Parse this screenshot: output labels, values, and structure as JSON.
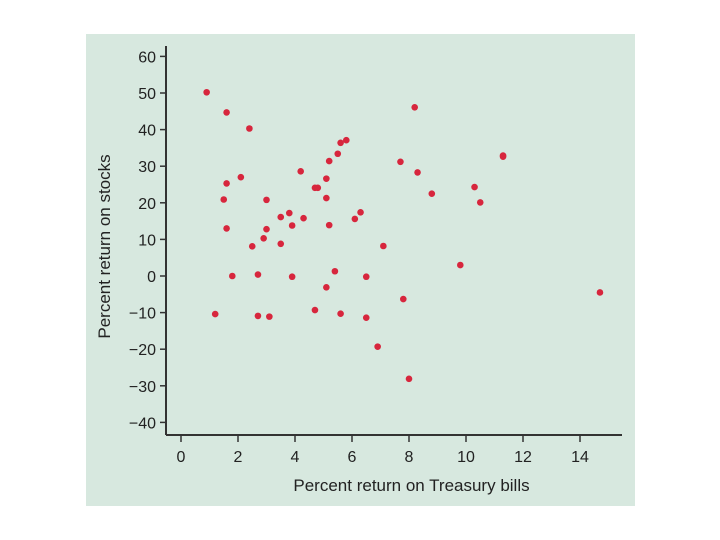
{
  "colors": {
    "panel": "#d7e8df",
    "point": "#d7263d",
    "axis": "#333333"
  },
  "chart_data": {
    "type": "scatter",
    "title": "",
    "xlabel": "Percent return on Treasury bills",
    "ylabel": "Percent return on stocks",
    "xlim": [
      0,
      15.5
    ],
    "ylim": [
      -40,
      60
    ],
    "xticks": [
      0,
      2,
      4,
      6,
      8,
      10,
      12,
      14
    ],
    "yticks": [
      60,
      50,
      40,
      30,
      20,
      10,
      0,
      -10,
      -20,
      -30,
      -40
    ],
    "xtick_labels": [
      "0",
      "2",
      "4",
      "6",
      "8",
      "10",
      "12",
      "14"
    ],
    "ytick_labels": [
      "60",
      "50",
      "40",
      "30",
      "20",
      "10",
      "0",
      "−10",
      "−20",
      "−30",
      "−40"
    ],
    "grid": false,
    "points": [
      {
        "x": 0.9,
        "y": 50.2
      },
      {
        "x": 1.6,
        "y": 44.7
      },
      {
        "x": 2.4,
        "y": 40.3
      },
      {
        "x": 1.6,
        "y": 25.3
      },
      {
        "x": 1.5,
        "y": 20.9
      },
      {
        "x": 1.6,
        "y": 13.0
      },
      {
        "x": 1.8,
        "y": 0.0
      },
      {
        "x": 1.2,
        "y": -10.4
      },
      {
        "x": 2.1,
        "y": 27.0
      },
      {
        "x": 2.5,
        "y": 8.1
      },
      {
        "x": 2.7,
        "y": 0.4
      },
      {
        "x": 2.7,
        "y": -10.9
      },
      {
        "x": 3.0,
        "y": 20.8
      },
      {
        "x": 3.0,
        "y": 12.8
      },
      {
        "x": 2.9,
        "y": 10.3
      },
      {
        "x": 3.1,
        "y": -11.1
      },
      {
        "x": 3.5,
        "y": 16.1
      },
      {
        "x": 3.8,
        "y": 17.2
      },
      {
        "x": 3.5,
        "y": 8.8
      },
      {
        "x": 3.9,
        "y": 13.8
      },
      {
        "x": 3.9,
        "y": -0.2
      },
      {
        "x": 4.2,
        "y": 28.6
      },
      {
        "x": 4.3,
        "y": 15.8
      },
      {
        "x": 4.7,
        "y": 24.1
      },
      {
        "x": 4.8,
        "y": 24.1
      },
      {
        "x": 4.7,
        "y": -9.3
      },
      {
        "x": 5.1,
        "y": 26.6
      },
      {
        "x": 5.2,
        "y": 31.4
      },
      {
        "x": 5.1,
        "y": 21.3
      },
      {
        "x": 5.2,
        "y": 13.9
      },
      {
        "x": 5.5,
        "y": 33.4
      },
      {
        "x": 5.6,
        "y": 36.4
      },
      {
        "x": 5.8,
        "y": 37.1
      },
      {
        "x": 5.4,
        "y": 1.3
      },
      {
        "x": 5.1,
        "y": -3.1
      },
      {
        "x": 5.6,
        "y": -10.3
      },
      {
        "x": 6.1,
        "y": 15.6
      },
      {
        "x": 6.3,
        "y": 17.4
      },
      {
        "x": 6.5,
        "y": -0.2
      },
      {
        "x": 6.5,
        "y": -11.4
      },
      {
        "x": 6.9,
        "y": -19.3
      },
      {
        "x": 7.1,
        "y": 8.2
      },
      {
        "x": 7.7,
        "y": 31.2
      },
      {
        "x": 7.8,
        "y": -6.3
      },
      {
        "x": 8.0,
        "y": -28.1
      },
      {
        "x": 8.2,
        "y": 46.1
      },
      {
        "x": 8.3,
        "y": 28.3
      },
      {
        "x": 8.8,
        "y": 22.5
      },
      {
        "x": 9.8,
        "y": 3.0
      },
      {
        "x": 10.3,
        "y": 24.3
      },
      {
        "x": 10.5,
        "y": 20.1
      },
      {
        "x": 11.3,
        "y": 32.9
      },
      {
        "x": 11.3,
        "y": 32.6
      },
      {
        "x": 14.7,
        "y": -4.5
      }
    ]
  }
}
